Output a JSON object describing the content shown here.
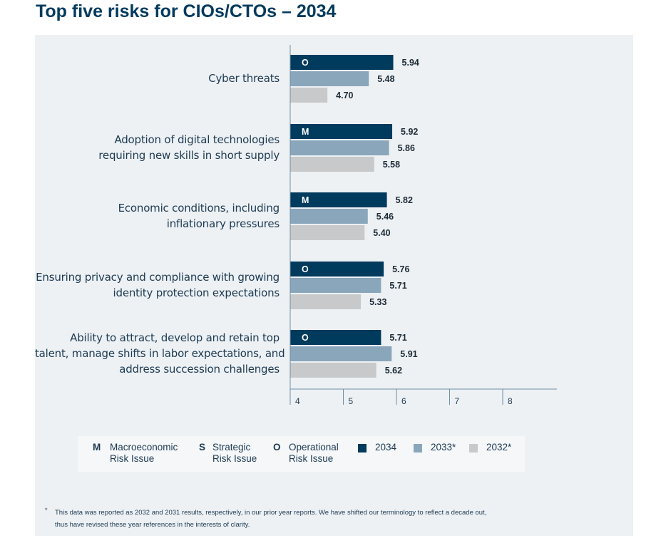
{
  "title": "Top five risks for CIOs/CTOs – 2034",
  "colors": {
    "y2034": "#003a5d",
    "y2033": "#8aa6bb",
    "y2032": "#c8c9ca",
    "axis": "#6d8fa6"
  },
  "chart_data": {
    "type": "bar",
    "orientation": "horizontal",
    "categories": [
      [
        "Cyber threats"
      ],
      [
        "Adoption of digital technologies",
        "requiring new skills in short supply"
      ],
      [
        "Economic conditions, including",
        "inflationary pressures"
      ],
      [
        "Ensuring privacy and compliance with growing",
        "identity protection expectations"
      ],
      [
        "Ability to attract, develop and retain top",
        "talent, manage shifts in labor expectations, and",
        "address succession challenges"
      ]
    ],
    "risk_codes": [
      "O",
      "M",
      "M",
      "O",
      "O"
    ],
    "series": [
      {
        "name": "2034",
        "values": [
          5.94,
          5.92,
          5.82,
          5.76,
          5.71
        ]
      },
      {
        "name": "2033*",
        "values": [
          5.48,
          5.86,
          5.46,
          5.71,
          5.91
        ]
      },
      {
        "name": "2032*",
        "values": [
          4.7,
          5.58,
          5.4,
          5.33,
          5.62
        ]
      }
    ],
    "value_labels": [
      [
        "5.94",
        "5.48",
        "4.70"
      ],
      [
        "5.92",
        "5.86",
        "5.58"
      ],
      [
        "5.82",
        "5.46",
        "5.40"
      ],
      [
        "5.76",
        "5.71",
        "5.33"
      ],
      [
        "5.71",
        "5.91",
        "5.62"
      ]
    ],
    "xlim": [
      4,
      9
    ],
    "xticks": [
      "4",
      "5",
      "6",
      "7",
      "8"
    ]
  },
  "legend": {
    "codes": [
      {
        "code": "M",
        "label1": "Macroeconomic",
        "label2": "Risk Issue"
      },
      {
        "code": "S",
        "label1": "Strategic",
        "label2": "Risk Issue"
      },
      {
        "code": "O",
        "label1": "Operational",
        "label2": "Risk Issue"
      }
    ],
    "series": [
      "2034",
      "2033*",
      "2032*"
    ]
  },
  "footnote": {
    "star": "*",
    "line1": "This data was reported as 2032 and 2031 results, respectively, in our prior year reports. We have shifted our terminology to reflect a decade out,",
    "line2": "thus have revised these year references in the interests of clarity."
  }
}
